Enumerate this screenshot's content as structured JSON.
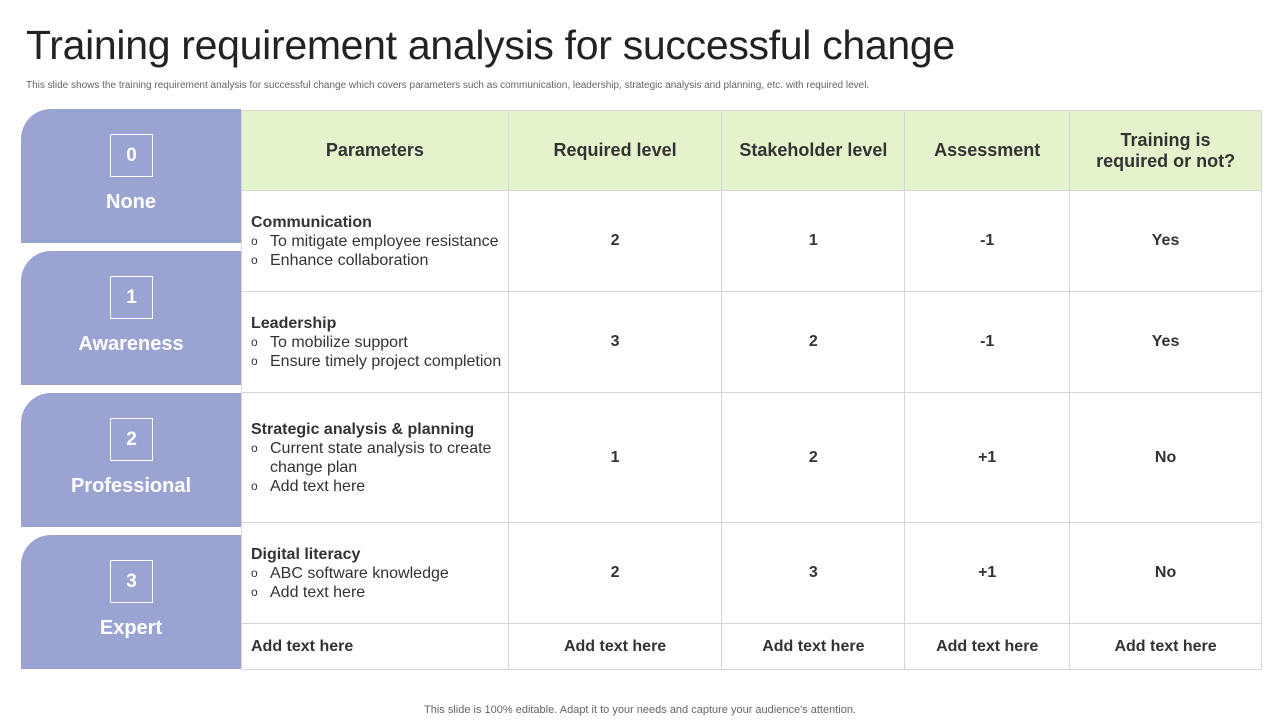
{
  "title": "Training requirement analysis for successful change",
  "subtitle": "This slide shows the training requirement analysis for successful change which covers parameters such as communication, leadership, strategic analysis and planning, etc. with required level.",
  "footer": "This slide is 100% editable. Adapt it to your needs and capture your audience's attention.",
  "levels": [
    {
      "num": "0",
      "label": "None"
    },
    {
      "num": "1",
      "label": "Awareness"
    },
    {
      "num": "2",
      "label": "Professional"
    },
    {
      "num": "3",
      "label": "Expert"
    }
  ],
  "colors": {
    "tab": "#9ba3d3",
    "header": "#e5f3cc"
  },
  "table": {
    "headers": [
      "Parameters",
      "Required level",
      "Stakeholder level",
      "Assessment",
      "Training is required or not?"
    ],
    "rows": [
      {
        "name": "Communication",
        "bullets": [
          "To mitigate employee resistance",
          "Enhance collaboration"
        ],
        "required": "2",
        "stakeholder": "1",
        "assessment": "-1",
        "training": "Yes"
      },
      {
        "name": "Leadership",
        "bullets": [
          "To mobilize support",
          "Ensure timely project completion"
        ],
        "required": "3",
        "stakeholder": "2",
        "assessment": "-1",
        "training": "Yes"
      },
      {
        "name": "Strategic analysis & planning",
        "bullets": [
          "Current state analysis to create change plan",
          "Add text here"
        ],
        "required": "1",
        "stakeholder": "2",
        "assessment": "+1",
        "training": "No"
      },
      {
        "name": "Digital literacy",
        "bullets": [
          "ABC software knowledge",
          "Add text here"
        ],
        "required": "2",
        "stakeholder": "3",
        "assessment": "+1",
        "training": "No"
      }
    ],
    "last_row": [
      "Add text here",
      "Add text here",
      "Add text here",
      "Add text here",
      "Add text here"
    ]
  }
}
